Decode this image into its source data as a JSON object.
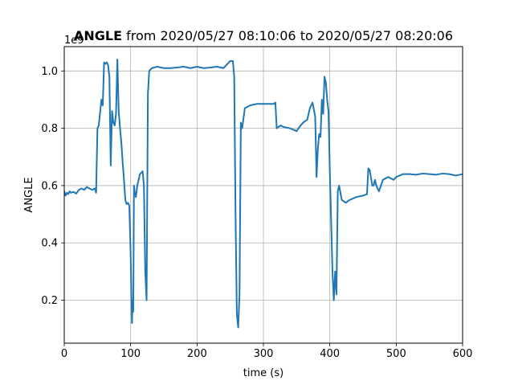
{
  "figure": {
    "background": "#ffffff"
  },
  "chart_data": {
    "type": "line",
    "title": {
      "bold": "ANGLE",
      "rest": " from 2020/05/27 08:10:06 to 2020/05/27 08:20:06"
    },
    "xlabel": "time (s)",
    "ylabel": "ANGLE",
    "y_offset_text": "1e9",
    "xlim": [
      0,
      600
    ],
    "ylim": [
      0.05,
      1.085
    ],
    "xticks": [
      0,
      100,
      200,
      300,
      400,
      500,
      600
    ],
    "xtick_labels": [
      "0",
      "100",
      "200",
      "300",
      "400",
      "500",
      "600"
    ],
    "yticks": [
      0.2,
      0.4,
      0.6,
      0.8,
      1.0
    ],
    "ytick_labels": [
      "0.2",
      "0.4",
      "0.6",
      "0.8",
      "1.0"
    ],
    "grid": true,
    "line_color": "#1f77b4",
    "series": [
      {
        "x": [
          0,
          2,
          4,
          6,
          8,
          10,
          14,
          18,
          22,
          26,
          30,
          34,
          38,
          42,
          46,
          48,
          50,
          52,
          56,
          58,
          60,
          62,
          64,
          66,
          68,
          70,
          72,
          74,
          76,
          78,
          80,
          82,
          84,
          86,
          88,
          90,
          92,
          94,
          96,
          98,
          100,
          102,
          103,
          104,
          105,
          106,
          108,
          110,
          114,
          118,
          120,
          122,
          124,
          126,
          128,
          132,
          140,
          150,
          160,
          170,
          180,
          190,
          200,
          210,
          220,
          230,
          240,
          250,
          254,
          256,
          258,
          260,
          262,
          264,
          266,
          268,
          272,
          280,
          290,
          300,
          310,
          316,
          318,
          320,
          326,
          330,
          340,
          350,
          356,
          360,
          366,
          370,
          374,
          378,
          380,
          382,
          384,
          386,
          388,
          390,
          392,
          394,
          396,
          398,
          400,
          402,
          404,
          406,
          408,
          410,
          412,
          414,
          418,
          424,
          430,
          440,
          450,
          456,
          458,
          460,
          464,
          466,
          468,
          470,
          474,
          480,
          488,
          496,
          500,
          510,
          520,
          530,
          540,
          550,
          560,
          570,
          580,
          590,
          600
        ],
        "y": [
          0.58,
          0.565,
          0.575,
          0.57,
          0.58,
          0.575,
          0.578,
          0.572,
          0.585,
          0.59,
          0.585,
          0.595,
          0.59,
          0.585,
          0.59,
          0.575,
          0.8,
          0.81,
          0.9,
          0.88,
          1.03,
          1.025,
          1.03,
          1.02,
          0.98,
          0.67,
          0.86,
          0.82,
          0.81,
          0.85,
          1.04,
          0.86,
          0.8,
          0.75,
          0.68,
          0.62,
          0.55,
          0.535,
          0.54,
          0.53,
          0.36,
          0.12,
          0.2,
          0.16,
          0.6,
          0.58,
          0.56,
          0.6,
          0.64,
          0.65,
          0.6,
          0.3,
          0.2,
          0.92,
          1.0,
          1.01,
          1.015,
          1.01,
          1.01,
          1.012,
          1.015,
          1.01,
          1.015,
          1.01,
          1.012,
          1.015,
          1.01,
          1.035,
          1.035,
          0.98,
          0.5,
          0.15,
          0.105,
          0.22,
          0.82,
          0.8,
          0.87,
          0.88,
          0.885,
          0.885,
          0.885,
          0.885,
          0.89,
          0.8,
          0.81,
          0.805,
          0.8,
          0.79,
          0.81,
          0.82,
          0.83,
          0.87,
          0.89,
          0.84,
          0.63,
          0.73,
          0.78,
          0.77,
          0.9,
          0.85,
          0.98,
          0.96,
          0.9,
          0.86,
          0.65,
          0.48,
          0.3,
          0.2,
          0.3,
          0.22,
          0.58,
          0.6,
          0.55,
          0.54,
          0.55,
          0.56,
          0.565,
          0.57,
          0.66,
          0.655,
          0.6,
          0.6,
          0.62,
          0.6,
          0.58,
          0.62,
          0.63,
          0.62,
          0.63,
          0.64,
          0.64,
          0.638,
          0.642,
          0.64,
          0.638,
          0.642,
          0.64,
          0.635,
          0.64
        ]
      }
    ]
  }
}
